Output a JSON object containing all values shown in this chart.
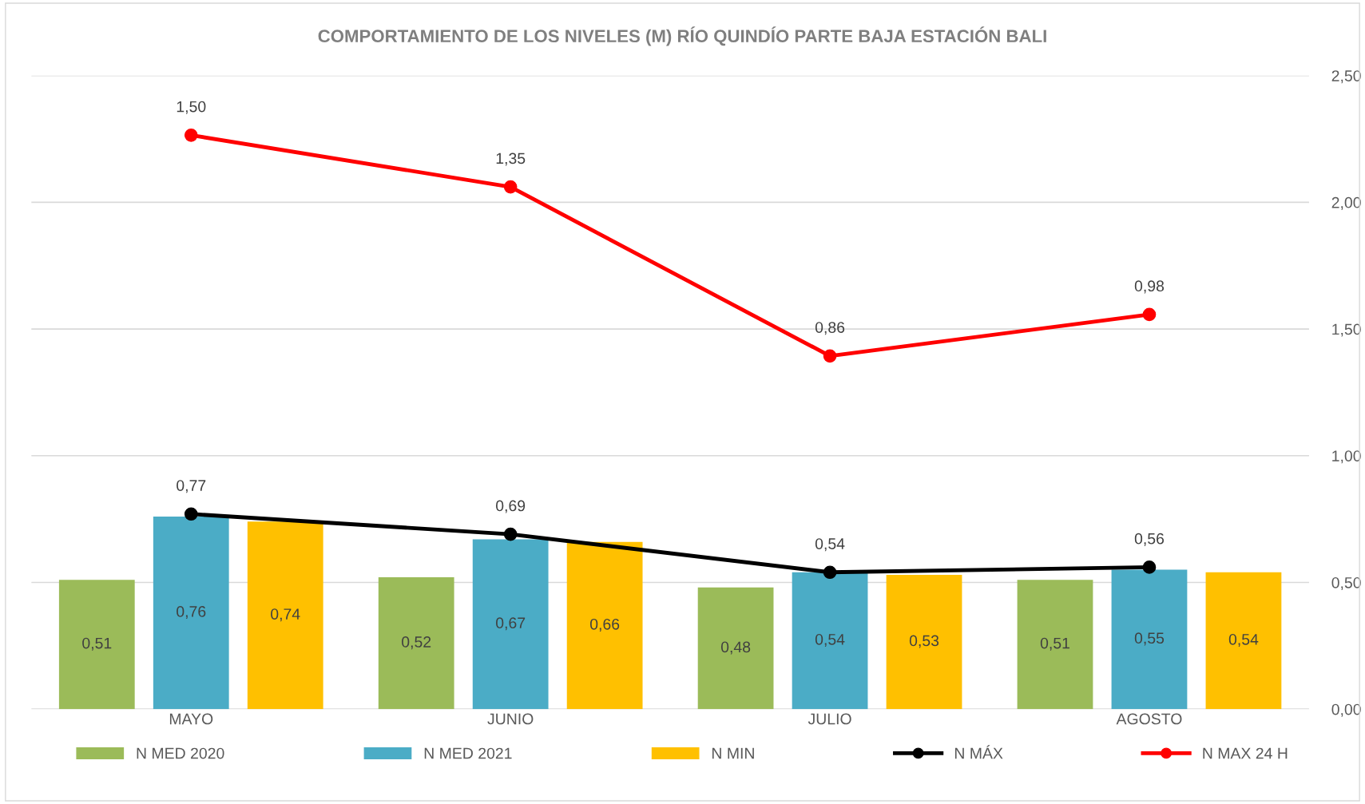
{
  "chart_data": {
    "type": "bar",
    "title": "COMPORTAMIENTO DE LOS NIVELES (M) RÍO QUINDÍO PARTE BAJA ESTACIÓN BALI",
    "categories": [
      "MAYO",
      "JUNIO",
      "JULIO",
      "AGOSTO"
    ],
    "series": [
      {
        "name": "N MED 2020",
        "color": "#9bbb59",
        "values": [
          0.51,
          0.52,
          0.48,
          0.51
        ],
        "value_labels": [
          "0,51",
          "0,52",
          "0,48",
          "0,51"
        ]
      },
      {
        "name": "N MED 2021",
        "color": "#4bacc6",
        "values": [
          0.76,
          0.67,
          0.54,
          0.55
        ],
        "value_labels": [
          "0,76",
          "0,67",
          "0,54",
          "0,55"
        ]
      },
      {
        "name": "N MIN",
        "color": "#ffc000",
        "values": [
          0.74,
          0.66,
          0.53,
          0.54
        ],
        "value_labels": [
          "0,74",
          "0,66",
          "0,53",
          "0,54"
        ]
      },
      {
        "name": "N MÁX",
        "type": "line",
        "color": "#000000",
        "marker": "circle",
        "values": [
          0.77,
          0.69,
          0.54,
          0.56
        ],
        "value_labels": [
          "0,77",
          "0,69",
          "0,54",
          "0,56"
        ]
      },
      {
        "name": "N MAX 24 H",
        "type": "line",
        "color": "#ff0000",
        "marker": "circle",
        "axis": "y2",
        "values": [
          1.5,
          1.35,
          0.86,
          0.98
        ],
        "value_labels": [
          "1,50",
          "1,35",
          "0,86",
          "0,98"
        ]
      }
    ],
    "ylim": [
      0,
      2.5
    ],
    "yticks": [
      {
        "value": 0,
        "label": "0,00"
      },
      {
        "value": 0.5,
        "label": "0,50"
      },
      {
        "value": 1.0,
        "label": "1,00"
      },
      {
        "value": 1.5,
        "label": "1,50"
      },
      {
        "value": 2.0,
        "label": "2,00"
      },
      {
        "value": 2.5,
        "label": "2,50"
      }
    ],
    "grid": "y",
    "legend": "bottom"
  }
}
